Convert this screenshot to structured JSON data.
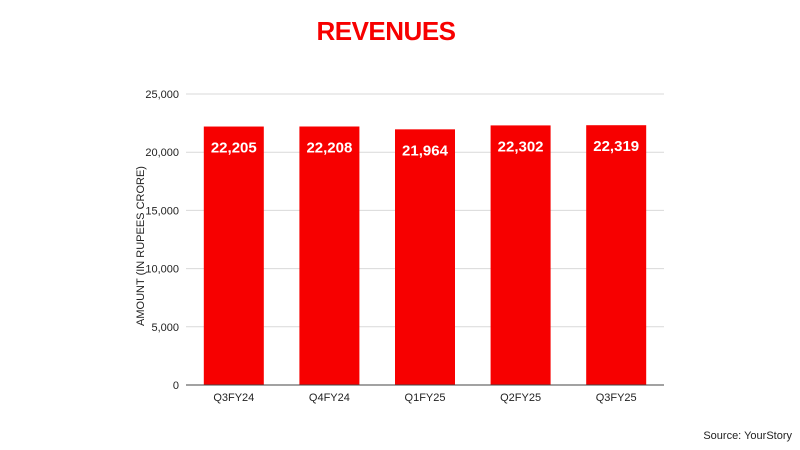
{
  "source": "Source: YourStory",
  "colors": {
    "bar": "#f70000",
    "title": "#f70000",
    "grid": "#d9d9d9",
    "axis": "#444444"
  },
  "chart_data": {
    "type": "bar",
    "title": "REVENUES",
    "xlabel": "",
    "ylabel": "AMOUNT (IN RUPEES CRORE)",
    "categories": [
      "Q3FY24",
      "Q4FY24",
      "Q1FY25",
      "Q2FY25",
      "Q3FY25"
    ],
    "values": [
      22205,
      22208,
      21964,
      22302,
      22319
    ],
    "data_labels": [
      "22,205",
      "22,208",
      "21,964",
      "22,302",
      "22,319"
    ],
    "ylim": [
      0,
      25000
    ],
    "yticks": [
      0,
      5000,
      10000,
      15000,
      20000,
      25000
    ],
    "ytick_labels": [
      "0",
      "5,000",
      "10,000",
      "15,000",
      "20,000",
      "25,000"
    ],
    "grid": true,
    "legend": "none"
  }
}
